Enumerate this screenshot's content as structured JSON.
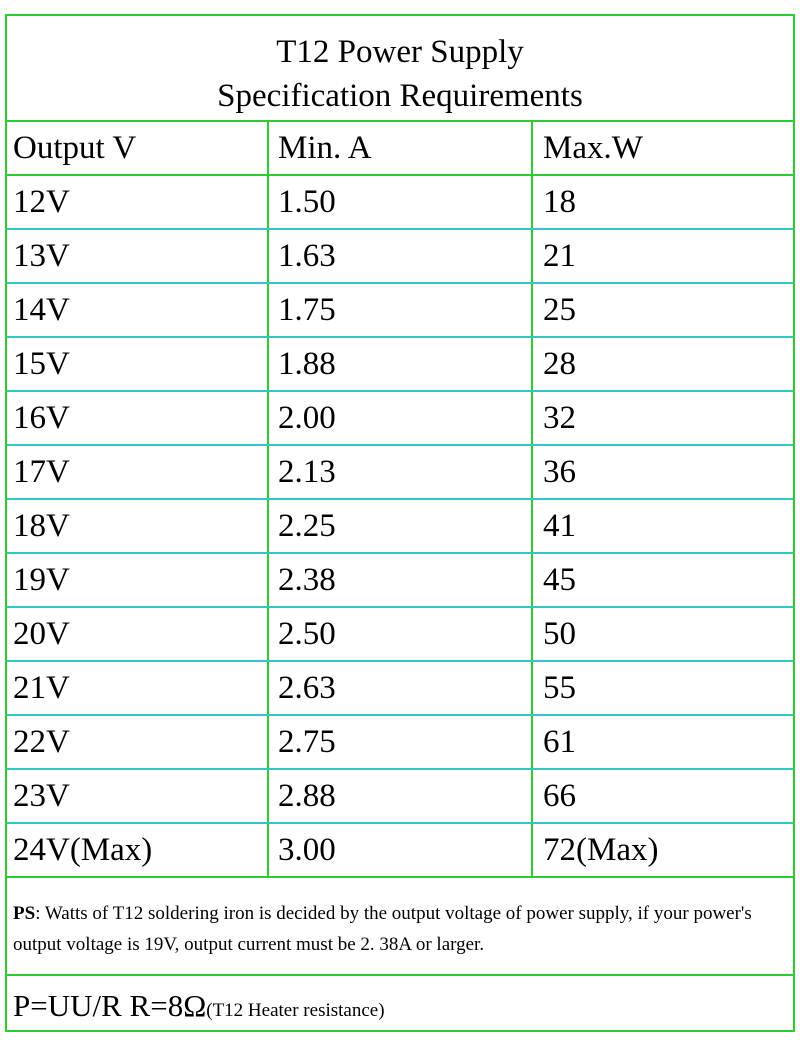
{
  "header": {
    "title": [
      "T12 Power Supply",
      "Specification Requirements"
    ]
  },
  "table": {
    "columns": [
      "Output V",
      "Min. A",
      "Max.W"
    ],
    "rows": [
      [
        "12V",
        "1.50",
        "18"
      ],
      [
        "13V",
        "1.63",
        "21"
      ],
      [
        "14V",
        "1.75",
        "25"
      ],
      [
        "15V",
        "1.88",
        "28"
      ],
      [
        "16V",
        "2.00",
        "32"
      ],
      [
        "17V",
        "2.13",
        "36"
      ],
      [
        "18V",
        "2.25",
        "41"
      ],
      [
        "19V",
        "2.38",
        "45"
      ],
      [
        "20V",
        "2.50",
        "50"
      ],
      [
        "21V",
        "2.63",
        "55"
      ],
      [
        "22V",
        "2.75",
        "61"
      ],
      [
        "23V",
        "2.88",
        "66"
      ],
      [
        "24V(Max)",
        "3.00",
        "72(Max)"
      ]
    ]
  },
  "note": {
    "label": "PS",
    "text": ": Watts of T12 soldering iron is decided by the output voltage of power supply, if your power's output voltage is 19V, output current must be 2. 38A or larger."
  },
  "formula": {
    "main": "P=UU/R R=8Ω",
    "remark": "(T12 Heater resistance)"
  }
}
